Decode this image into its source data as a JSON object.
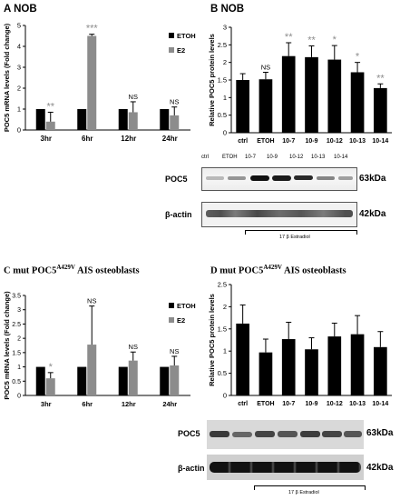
{
  "panel_titles": {
    "A": "A NOB",
    "B": "B NOB",
    "C_prefix": "C mut POC5",
    "C_sup": "A429V",
    "C_suffix": " AIS osteoblasts",
    "D_prefix": "D mut POC5",
    "D_sup": "A429V",
    "D_suffix": " AIS osteoblasts"
  },
  "colors": {
    "etoh": "#000000",
    "e2": "#8c8c8c",
    "sig_gray": "#8c8c8c",
    "bar_black": "#000000"
  },
  "blots": {
    "top": {
      "lane_labels": [
        "ctrl",
        "ETOH",
        "10-7",
        "10-9",
        "10-12",
        "10-13",
        "10-14"
      ],
      "band1": "POC5",
      "kda1": "63kDa",
      "band2": "β-actin",
      "kda2": "42kDa",
      "treatment": "17 β Estradiol"
    },
    "bottom": {
      "band1": "POC5",
      "kda1": "63kDa",
      "band2": "β-actin",
      "kda2": "42kDa",
      "treatment": "17 β Estradiol"
    }
  },
  "chart_data": [
    {
      "panel": "A",
      "type": "bar",
      "ylabel": "POC5 mRNA levels (Fold change)",
      "categories": [
        "3hr",
        "6hr",
        "12hr",
        "24hr"
      ],
      "ylim": [
        0,
        5
      ],
      "yticks": [
        0,
        1,
        2,
        3,
        4,
        5
      ],
      "legend": "right",
      "series": [
        {
          "name": "ETOH",
          "values": [
            1,
            1,
            1,
            1
          ],
          "errors": [
            0,
            0,
            0,
            0
          ]
        },
        {
          "name": "E2",
          "values": [
            0.4,
            4.5,
            0.85,
            0.7
          ],
          "errors": [
            0.45,
            0.08,
            0.5,
            0.4
          ]
        }
      ],
      "annotations": [
        "**",
        "***",
        "NS",
        "NS"
      ]
    },
    {
      "panel": "B",
      "type": "bar",
      "ylabel": "Relative POC5 protein levels",
      "categories": [
        "ctrl",
        "ETOH",
        "10-7",
        "10-9",
        "10-12",
        "10-13",
        "10-14"
      ],
      "ylim": [
        0,
        3
      ],
      "yticks": [
        0,
        0.5,
        1,
        1.5,
        2,
        2.5,
        3
      ],
      "values": [
        1.5,
        1.52,
        2.18,
        2.15,
        2.08,
        1.72,
        1.27
      ],
      "errors": [
        0.18,
        0.2,
        0.38,
        0.32,
        0.4,
        0.28,
        0.12
      ],
      "annotations": [
        "",
        "NS",
        "**",
        "**",
        "*",
        "*",
        "**"
      ]
    },
    {
      "panel": "C",
      "type": "bar",
      "ylabel": "POC5 mRNA levels (Fold change)",
      "categories": [
        "3hr",
        "6hr",
        "12hr",
        "24hr"
      ],
      "ylim": [
        0,
        3.5
      ],
      "yticks": [
        0,
        0.5,
        1,
        1.5,
        2,
        2.5,
        3,
        3.5
      ],
      "legend": "right",
      "series": [
        {
          "name": "ETOH",
          "values": [
            1,
            1,
            1,
            1
          ],
          "errors": [
            0,
            0,
            0,
            0
          ]
        },
        {
          "name": "E2",
          "values": [
            0.6,
            1.78,
            1.22,
            1.05
          ],
          "errors": [
            0.2,
            1.35,
            0.3,
            0.32
          ]
        }
      ],
      "annotations": [
        "*",
        "NS",
        "NS",
        "NS"
      ]
    },
    {
      "panel": "D",
      "type": "bar",
      "ylabel": "Relative POC5 protein levels",
      "categories": [
        "ctrl",
        "ETOH",
        "10-7",
        "10-9",
        "10-12",
        "10-13",
        "10-14"
      ],
      "ylim": [
        0,
        2.5
      ],
      "yticks": [
        0,
        0.5,
        1,
        1.5,
        2,
        2.5
      ],
      "values": [
        1.62,
        0.97,
        1.27,
        1.04,
        1.33,
        1.38,
        1.09
      ],
      "errors": [
        0.42,
        0.3,
        0.38,
        0.26,
        0.3,
        0.42,
        0.35
      ],
      "annotations": []
    }
  ]
}
